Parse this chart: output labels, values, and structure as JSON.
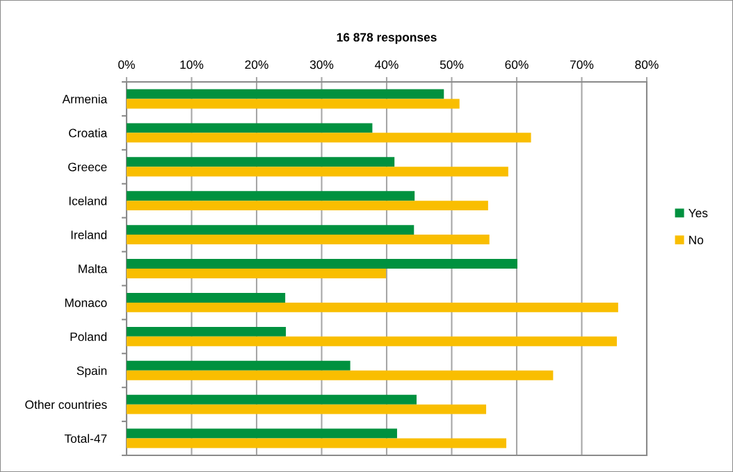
{
  "chart_data": {
    "type": "bar",
    "orientation": "horizontal",
    "title": "16 878 responses",
    "categories": [
      "Armenia",
      "Croatia",
      "Greece",
      "Iceland",
      "Ireland",
      "Malta",
      "Monaco",
      "Poland",
      "Spain",
      "Other countries",
      "Total-47"
    ],
    "series": [
      {
        "name": "Yes",
        "color": "#00913f",
        "values": [
          48.8,
          37.8,
          41.2,
          44.3,
          44.2,
          60.1,
          24.4,
          24.5,
          34.4,
          44.6,
          41.6
        ]
      },
      {
        "name": "No",
        "color": "#f9be00",
        "values": [
          51.2,
          62.2,
          58.7,
          55.6,
          55.8,
          39.9,
          75.6,
          75.4,
          65.6,
          55.3,
          58.4
        ]
      }
    ],
    "xlim": [
      0,
      80
    ],
    "xticks": [
      {
        "value": 0,
        "label": "0%"
      },
      {
        "value": 10,
        "label": "10%"
      },
      {
        "value": 20,
        "label": "20%"
      },
      {
        "value": 30,
        "label": "30%"
      },
      {
        "value": 40,
        "label": "40%"
      },
      {
        "value": 50,
        "label": "50%"
      },
      {
        "value": 60,
        "label": "60%"
      },
      {
        "value": 70,
        "label": "70%"
      },
      {
        "value": 80,
        "label": "80%"
      }
    ],
    "grid": "x",
    "legend": "right"
  }
}
